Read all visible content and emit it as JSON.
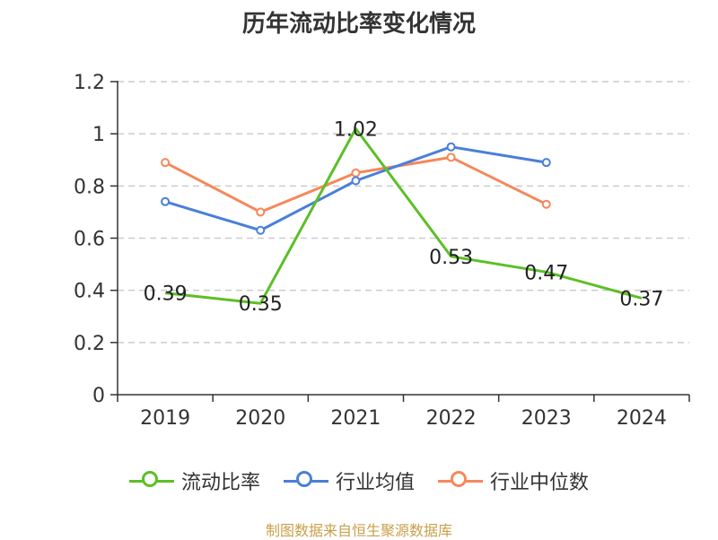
{
  "title": "历年流动比率变化情况",
  "source": "制图数据来自恒生聚源数据库",
  "chart_data": {
    "type": "line",
    "categories": [
      "2019",
      "2020",
      "2021",
      "2022",
      "2023",
      "2024"
    ],
    "ylim": [
      0,
      1.2
    ],
    "yticks": [
      "0",
      "0.2",
      "0.4",
      "0.6",
      "0.8",
      "1",
      "1.2"
    ],
    "grid": true,
    "legend_position": "bottom",
    "series": [
      {
        "name": "流动比率",
        "color": "#5cbf26",
        "values": [
          0.39,
          0.35,
          1.02,
          0.53,
          0.47,
          0.37
        ],
        "labels": [
          "0.39",
          "0.35",
          "1.02",
          "0.53",
          "0.47",
          "0.37"
        ],
        "markers": false
      },
      {
        "name": "行业均值",
        "color": "#4a7fd9",
        "values": [
          0.74,
          0.63,
          0.82,
          0.95,
          0.89,
          null
        ],
        "markers": true
      },
      {
        "name": "行业中位数",
        "color": "#f5885a",
        "values": [
          0.89,
          0.7,
          0.85,
          0.91,
          0.73,
          null
        ],
        "markers": true
      }
    ]
  }
}
